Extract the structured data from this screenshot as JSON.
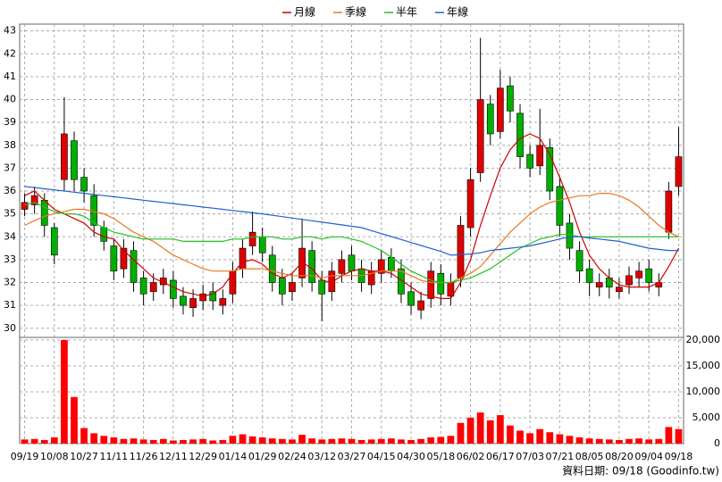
{
  "chart_data": {
    "type": "candlestick",
    "x": [
      "09/19",
      null,
      null,
      "10/08",
      null,
      null,
      "10/27",
      null,
      null,
      "11/11",
      null,
      null,
      "11/26",
      null,
      null,
      "12/11",
      null,
      null,
      "12/29",
      null,
      null,
      "01/14",
      null,
      null,
      "01/29",
      null,
      null,
      "02/24",
      null,
      null,
      "03/12",
      null,
      null,
      "03/27",
      null,
      null,
      "04/15",
      null,
      null,
      "04/30",
      null,
      null,
      "05/18",
      null,
      null,
      "06/02",
      null,
      null,
      "06/17",
      null,
      null,
      "07/03",
      null,
      null,
      "07/21",
      null,
      null,
      "08/05",
      null,
      null,
      "08/20",
      null,
      null,
      "09/04",
      null,
      null,
      "09/18"
    ],
    "open": [
      35.2,
      35.4,
      35.6,
      34.4,
      36.5,
      38.2,
      36.6,
      35.8,
      34.4,
      33.6,
      32.6,
      33.4,
      32.2,
      31.6,
      31.9,
      32.1,
      31.4,
      30.9,
      31.2,
      31.6,
      31.0,
      31.5,
      32.6,
      33.6,
      34.0,
      33.2,
      32.2,
      31.6,
      32.2,
      33.4,
      32.1,
      31.6,
      32.4,
      33.2,
      32.6,
      31.9,
      32.4,
      33.1,
      32.6,
      31.6,
      30.8,
      31.3,
      32.4,
      31.4,
      32.2,
      34.4,
      36.8,
      39.8,
      38.6,
      40.6,
      39.4,
      37.6,
      37.1,
      37.9,
      36.2,
      34.6,
      33.4,
      32.6,
      31.8,
      32.2,
      31.6,
      31.9,
      32.2,
      32.6,
      31.8,
      34.2,
      36.2
    ],
    "high": [
      35.9,
      36.2,
      35.9,
      34.6,
      40.1,
      38.6,
      37.0,
      36.3,
      34.7,
      33.9,
      33.9,
      33.8,
      32.5,
      32.4,
      32.6,
      32.5,
      31.8,
      31.7,
      31.9,
      32.0,
      31.7,
      32.9,
      33.9,
      35.1,
      34.4,
      33.6,
      32.6,
      32.4,
      34.8,
      33.8,
      32.5,
      32.9,
      33.4,
      33.6,
      33.0,
      32.9,
      33.4,
      33.5,
      33.0,
      32.0,
      31.6,
      32.9,
      32.8,
      32.4,
      34.9,
      37.0,
      42.7,
      40.2,
      41.3,
      41.0,
      39.8,
      38.0,
      39.6,
      38.3,
      36.6,
      35.0,
      33.8,
      33.0,
      32.4,
      32.6,
      32.2,
      32.7,
      32.9,
      33.0,
      32.4,
      36.4,
      38.8
    ],
    "low": [
      34.9,
      35.0,
      34.0,
      32.8,
      36.0,
      36.0,
      35.5,
      34.0,
      33.4,
      32.1,
      32.2,
      31.6,
      31.0,
      31.2,
      31.5,
      30.9,
      30.6,
      30.5,
      30.8,
      30.8,
      30.6,
      31.1,
      32.2,
      33.2,
      32.9,
      31.6,
      31.0,
      31.2,
      31.8,
      31.6,
      30.3,
      31.2,
      32.0,
      32.1,
      31.6,
      31.5,
      32.0,
      32.2,
      31.1,
      30.6,
      30.4,
      30.9,
      31.0,
      31.0,
      31.8,
      34.0,
      36.4,
      38.0,
      38.3,
      39.0,
      37.0,
      36.6,
      36.7,
      35.6,
      34.0,
      33.0,
      32.0,
      31.4,
      31.4,
      31.3,
      31.3,
      31.5,
      31.8,
      31.6,
      31.4,
      33.9,
      35.8
    ],
    "close": [
      35.5,
      35.8,
      34.5,
      33.2,
      38.5,
      36.5,
      36,
      34.5,
      33.8,
      32.5,
      33.5,
      32,
      31.5,
      32,
      32.2,
      31.3,
      31,
      31.3,
      31.5,
      31.2,
      31.3,
      32.5,
      33.5,
      34.2,
      33.3,
      32,
      31.5,
      32,
      33.5,
      32,
      31.5,
      32.5,
      33,
      32.5,
      32,
      32.5,
      33,
      32.5,
      31.5,
      31,
      31.2,
      32.5,
      31.5,
      32,
      34.5,
      36.5,
      40,
      38.5,
      40.5,
      39.5,
      37.5,
      37,
      38,
      36,
      34.5,
      33.5,
      32.5,
      32,
      32,
      31.8,
      31.8,
      32.3,
      32.5,
      32,
      32,
      36,
      37.5
    ],
    "up_color": "#e00000",
    "down_color": "#00b000",
    "series": [
      {
        "name": "月線",
        "color": "#d00000",
        "values": [
          35.8,
          36.0,
          35.6,
          35.2,
          35.0,
          34.8,
          34.6,
          34.2,
          34.0,
          33.9,
          33.4,
          33.0,
          32.6,
          32.2,
          32.0,
          31.8,
          31.6,
          31.5,
          31.4,
          31.5,
          31.8,
          32.4,
          32.9,
          33.0,
          32.8,
          32.4,
          32.2,
          32.4,
          32.9,
          32.6,
          32.1,
          32.0,
          32.3,
          32.5,
          32.6,
          32.5,
          32.5,
          32.4,
          32.1,
          31.8,
          31.5,
          31.4,
          31.3,
          31.3,
          32.0,
          33.0,
          34.5,
          35.8,
          37.0,
          37.8,
          38.3,
          38.5,
          38.3,
          37.6,
          36.6,
          35.5,
          34.2,
          33.2,
          32.6,
          32.2,
          31.9,
          31.8,
          31.8,
          31.8,
          32.0,
          32.7,
          33.5
        ]
      },
      {
        "name": "季線",
        "color": "#e87820",
        "values": [
          34.5,
          34.7,
          34.9,
          35.0,
          35.1,
          35.2,
          35.2,
          35.1,
          35.0,
          34.8,
          34.5,
          34.2,
          34.0,
          33.8,
          33.5,
          33.2,
          33.0,
          32.8,
          32.6,
          32.5,
          32.5,
          32.5,
          32.6,
          32.6,
          32.6,
          32.5,
          32.4,
          32.3,
          32.3,
          32.3,
          32.2,
          32.3,
          32.3,
          32.3,
          32.3,
          32.4,
          32.5,
          32.5,
          32.5,
          32.3,
          32.1,
          32.0,
          32.0,
          32.0,
          32.2,
          32.4,
          32.7,
          33.2,
          33.7,
          34.2,
          34.6,
          35.0,
          35.3,
          35.5,
          35.6,
          35.7,
          35.8,
          35.8,
          35.9,
          35.9,
          35.8,
          35.6,
          35.3,
          34.9,
          34.5,
          34.2,
          34.0
        ]
      },
      {
        "name": "半年",
        "color": "#20c020",
        "values": [
          35.4,
          35.5,
          35.3,
          35.1,
          35.0,
          35.0,
          34.9,
          34.6,
          34.4,
          34.2,
          34.1,
          34.0,
          33.9,
          33.9,
          33.9,
          33.9,
          33.8,
          33.8,
          33.8,
          33.8,
          33.8,
          33.9,
          33.9,
          34.0,
          34.0,
          34.0,
          33.9,
          33.9,
          34.0,
          34.0,
          33.9,
          34.0,
          34.0,
          33.9,
          33.8,
          33.6,
          33.4,
          33.1,
          32.8,
          32.5,
          32.3,
          32.1,
          32.0,
          32.0,
          32.1,
          32.2,
          32.4,
          32.6,
          32.9,
          33.2,
          33.5,
          33.7,
          33.9,
          34.0,
          34.1,
          34.1,
          34.0,
          34.0,
          34.0,
          34.0,
          34.0,
          34.0,
          34.0,
          34.0,
          34.0,
          34.0,
          34.0
        ]
      },
      {
        "name": "年線",
        "color": "#2060d0",
        "values": [
          36.2,
          36.15,
          36.1,
          36.05,
          36.0,
          35.95,
          35.9,
          35.85,
          35.8,
          35.75,
          35.7,
          35.65,
          35.6,
          35.55,
          35.5,
          35.45,
          35.4,
          35.35,
          35.3,
          35.25,
          35.2,
          35.15,
          35.1,
          35.05,
          35.0,
          34.94,
          34.88,
          34.82,
          34.76,
          34.7,
          34.64,
          34.58,
          34.52,
          34.46,
          34.4,
          34.27,
          34.14,
          34.01,
          33.88,
          33.75,
          33.62,
          33.49,
          33.36,
          33.2,
          33.22,
          33.25,
          33.3,
          33.4,
          33.45,
          33.5,
          33.55,
          33.6,
          33.7,
          33.8,
          33.9,
          34.0,
          34.0,
          33.95,
          33.9,
          33.85,
          33.8,
          33.7,
          33.6,
          33.5,
          33.45,
          33.4,
          33.4
        ]
      }
    ],
    "ylim": [
      29.6,
      43.3
    ],
    "yticks": [
      30,
      31,
      32,
      33,
      34,
      35,
      36,
      37,
      38,
      39,
      40,
      41,
      42,
      43
    ],
    "volume": {
      "color": "#ff0000",
      "values": [
        800,
        900,
        700,
        1200,
        20000,
        9000,
        3000,
        2000,
        1500,
        1200,
        900,
        1000,
        800,
        700,
        900,
        600,
        700,
        800,
        900,
        600,
        700,
        1500,
        1800,
        1400,
        1200,
        1000,
        900,
        800,
        1700,
        1000,
        800,
        900,
        1000,
        900,
        700,
        800,
        900,
        1000,
        800,
        700,
        900,
        1200,
        1300,
        1500,
        4000,
        5000,
        6000,
        4500,
        5500,
        3500,
        2500,
        2000,
        2800,
        2200,
        1800,
        1500,
        1200,
        1000,
        900,
        800,
        700,
        900,
        1000,
        800,
        900,
        3200,
        2800
      ],
      "ylim": [
        0,
        20500
      ],
      "yticks": [
        0,
        {
          "value": 5000,
          "label": "5,000"
        },
        {
          "value": 10000,
          "label": "10,000"
        },
        {
          "value": 15000,
          "label": "15,000"
        },
        {
          "value": 20000,
          "label": "20,000"
        }
      ]
    },
    "grid": true,
    "source": "資料日期: 09/18 (Goodinfo.tw)"
  }
}
